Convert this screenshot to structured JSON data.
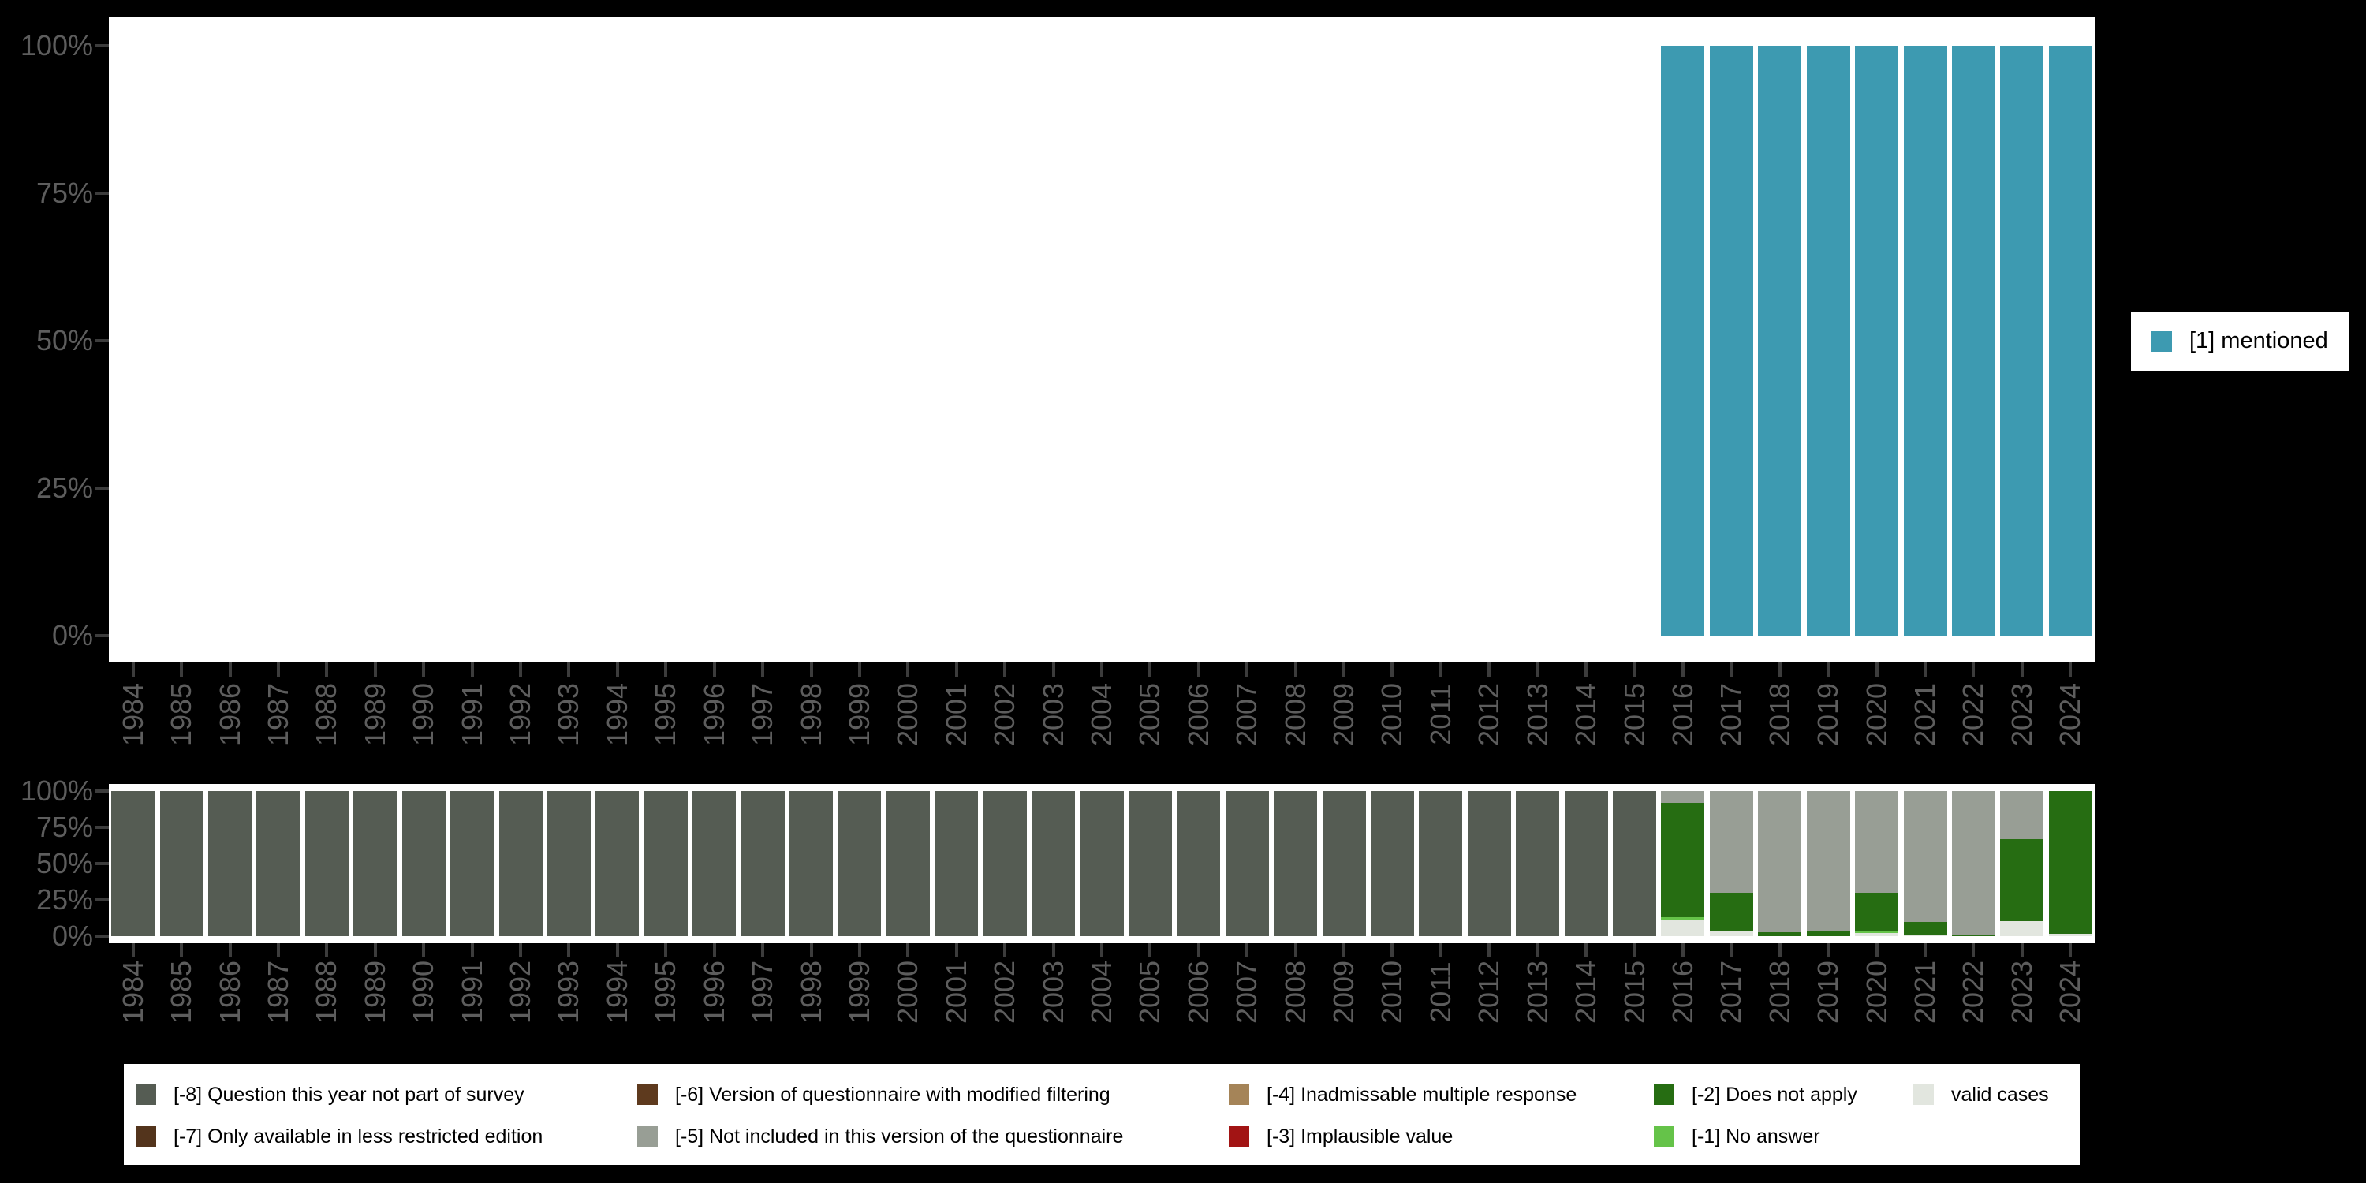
{
  "colors": {
    "background": "#000000",
    "plot_background": "#ffffff",
    "axis_text": "#5d5d5d",
    "tick_mark": "#3c3c3c",
    "legend_text": "#000000"
  },
  "top_legend": {
    "label": "[1] mentioned",
    "color": "#3d9ab1"
  },
  "chart_data": [
    {
      "type": "bar",
      "stacked": true,
      "title": "",
      "xlabel": "",
      "ylabel": "",
      "ylim": [
        0,
        100
      ],
      "y_tick_labels": [
        "100%",
        "75%",
        "50%",
        "25%",
        "0%"
      ],
      "legend_position": "right",
      "grid": false,
      "x": [
        1984,
        1985,
        1986,
        1987,
        1988,
        1989,
        1990,
        1991,
        1992,
        1993,
        1994,
        1995,
        1996,
        1997,
        1998,
        1999,
        2000,
        2001,
        2002,
        2003,
        2004,
        2005,
        2006,
        2007,
        2008,
        2009,
        2010,
        2011,
        2012,
        2013,
        2014,
        2015,
        2016,
        2017,
        2018,
        2019,
        2020,
        2021,
        2022,
        2023,
        2024
      ],
      "series": [
        {
          "key": "mentioned",
          "name": "[1] mentioned",
          "color": "#3d9ab1",
          "values": [
            0,
            0,
            0,
            0,
            0,
            0,
            0,
            0,
            0,
            0,
            0,
            0,
            0,
            0,
            0,
            0,
            0,
            0,
            0,
            0,
            0,
            0,
            0,
            0,
            0,
            0,
            0,
            0,
            0,
            0,
            0,
            0,
            100,
            100,
            100,
            100,
            100,
            100,
            100,
            100,
            100
          ]
        }
      ]
    },
    {
      "type": "bar",
      "stacked": true,
      "title": "",
      "xlabel": "",
      "ylabel": "",
      "ylim": [
        0,
        100
      ],
      "y_tick_labels": [
        "100%",
        "75%",
        "50%",
        "25%",
        "0%"
      ],
      "legend_position": "bottom",
      "grid": false,
      "x": [
        1984,
        1985,
        1986,
        1987,
        1988,
        1989,
        1990,
        1991,
        1992,
        1993,
        1994,
        1995,
        1996,
        1997,
        1998,
        1999,
        2000,
        2001,
        2002,
        2003,
        2004,
        2005,
        2006,
        2007,
        2008,
        2009,
        2010,
        2011,
        2012,
        2013,
        2014,
        2015,
        2016,
        2017,
        2018,
        2019,
        2020,
        2021,
        2022,
        2023,
        2024
      ],
      "series": [
        {
          "key": "-8",
          "name": "[-8] Question this year not part of survey",
          "color": "#555c53",
          "values": [
            100,
            100,
            100,
            100,
            100,
            100,
            100,
            100,
            100,
            100,
            100,
            100,
            100,
            100,
            100,
            100,
            100,
            100,
            100,
            100,
            100,
            100,
            100,
            100,
            100,
            100,
            100,
            100,
            100,
            100,
            100,
            100,
            0,
            0,
            0,
            0,
            0,
            0,
            0,
            0,
            0
          ]
        },
        {
          "key": "-7",
          "name": "[-7] Only available in less restricted edition",
          "color": "#53341c",
          "values": [
            0,
            0,
            0,
            0,
            0,
            0,
            0,
            0,
            0,
            0,
            0,
            0,
            0,
            0,
            0,
            0,
            0,
            0,
            0,
            0,
            0,
            0,
            0,
            0,
            0,
            0,
            0,
            0,
            0,
            0,
            0,
            0,
            0,
            0,
            0,
            0,
            0,
            0,
            0,
            0,
            0
          ]
        },
        {
          "key": "-6",
          "name": "[-6] Version of questionnaire with modified filtering",
          "color": "#5e3a1e",
          "values": [
            0,
            0,
            0,
            0,
            0,
            0,
            0,
            0,
            0,
            0,
            0,
            0,
            0,
            0,
            0,
            0,
            0,
            0,
            0,
            0,
            0,
            0,
            0,
            0,
            0,
            0,
            0,
            0,
            0,
            0,
            0,
            0,
            0,
            0,
            0,
            0,
            0,
            0,
            0,
            0,
            0
          ]
        },
        {
          "key": "-5",
          "name": "[-5] Not included in this version of the questionnaire",
          "color": "#989e95",
          "values": [
            0,
            0,
            0,
            0,
            0,
            0,
            0,
            0,
            0,
            0,
            0,
            0,
            0,
            0,
            0,
            0,
            0,
            0,
            0,
            0,
            0,
            0,
            0,
            0,
            0,
            0,
            0,
            0,
            0,
            0,
            0,
            0,
            8,
            70,
            97.5,
            97,
            70,
            90,
            99,
            33,
            0
          ]
        },
        {
          "key": "-4",
          "name": "[-4] Inadmissable multiple response",
          "color": "#a58458",
          "values": [
            0,
            0,
            0,
            0,
            0,
            0,
            0,
            0,
            0,
            0,
            0,
            0,
            0,
            0,
            0,
            0,
            0,
            0,
            0,
            0,
            0,
            0,
            0,
            0,
            0,
            0,
            0,
            0,
            0,
            0,
            0,
            0,
            0,
            0,
            0,
            0,
            0,
            0,
            0,
            0,
            0
          ]
        },
        {
          "key": "-3",
          "name": "[-3] Implausible value",
          "color": "#a21414",
          "values": [
            0,
            0,
            0,
            0,
            0,
            0,
            0,
            0,
            0,
            0,
            0,
            0,
            0,
            0,
            0,
            0,
            0,
            0,
            0,
            0,
            0,
            0,
            0,
            0,
            0,
            0,
            0,
            0,
            0,
            0,
            0,
            0,
            0,
            0,
            0,
            0,
            0,
            0,
            0,
            0,
            0
          ]
        },
        {
          "key": "-2",
          "name": "[-2] Does not apply",
          "color": "#266d12",
          "values": [
            0,
            0,
            0,
            0,
            0,
            0,
            0,
            0,
            0,
            0,
            0,
            0,
            0,
            0,
            0,
            0,
            0,
            0,
            0,
            0,
            0,
            0,
            0,
            0,
            0,
            0,
            0,
            0,
            0,
            0,
            0,
            0,
            79,
            26,
            2.5,
            3,
            26.5,
            9,
            1,
            56.5,
            98.5
          ]
        },
        {
          "key": "-1",
          "name": "[-1] No answer",
          "color": "#65c349",
          "values": [
            0,
            0,
            0,
            0,
            0,
            0,
            0,
            0,
            0,
            0,
            0,
            0,
            0,
            0,
            0,
            0,
            0,
            0,
            0,
            0,
            0,
            0,
            0,
            0,
            0,
            0,
            0,
            0,
            0,
            0,
            0,
            0,
            1.5,
            1,
            0,
            0,
            1.5,
            0.7,
            0,
            0,
            0
          ]
        },
        {
          "key": "valid",
          "name": "valid cases",
          "color": "#e2e6df",
          "values": [
            0,
            0,
            0,
            0,
            0,
            0,
            0,
            0,
            0,
            0,
            0,
            0,
            0,
            0,
            0,
            0,
            0,
            0,
            0,
            0,
            0,
            0,
            0,
            0,
            0,
            0,
            0,
            0,
            0,
            0,
            0,
            0,
            11.5,
            3,
            0,
            0,
            2,
            0.3,
            0,
            10.5,
            1.5
          ]
        }
      ]
    }
  ]
}
